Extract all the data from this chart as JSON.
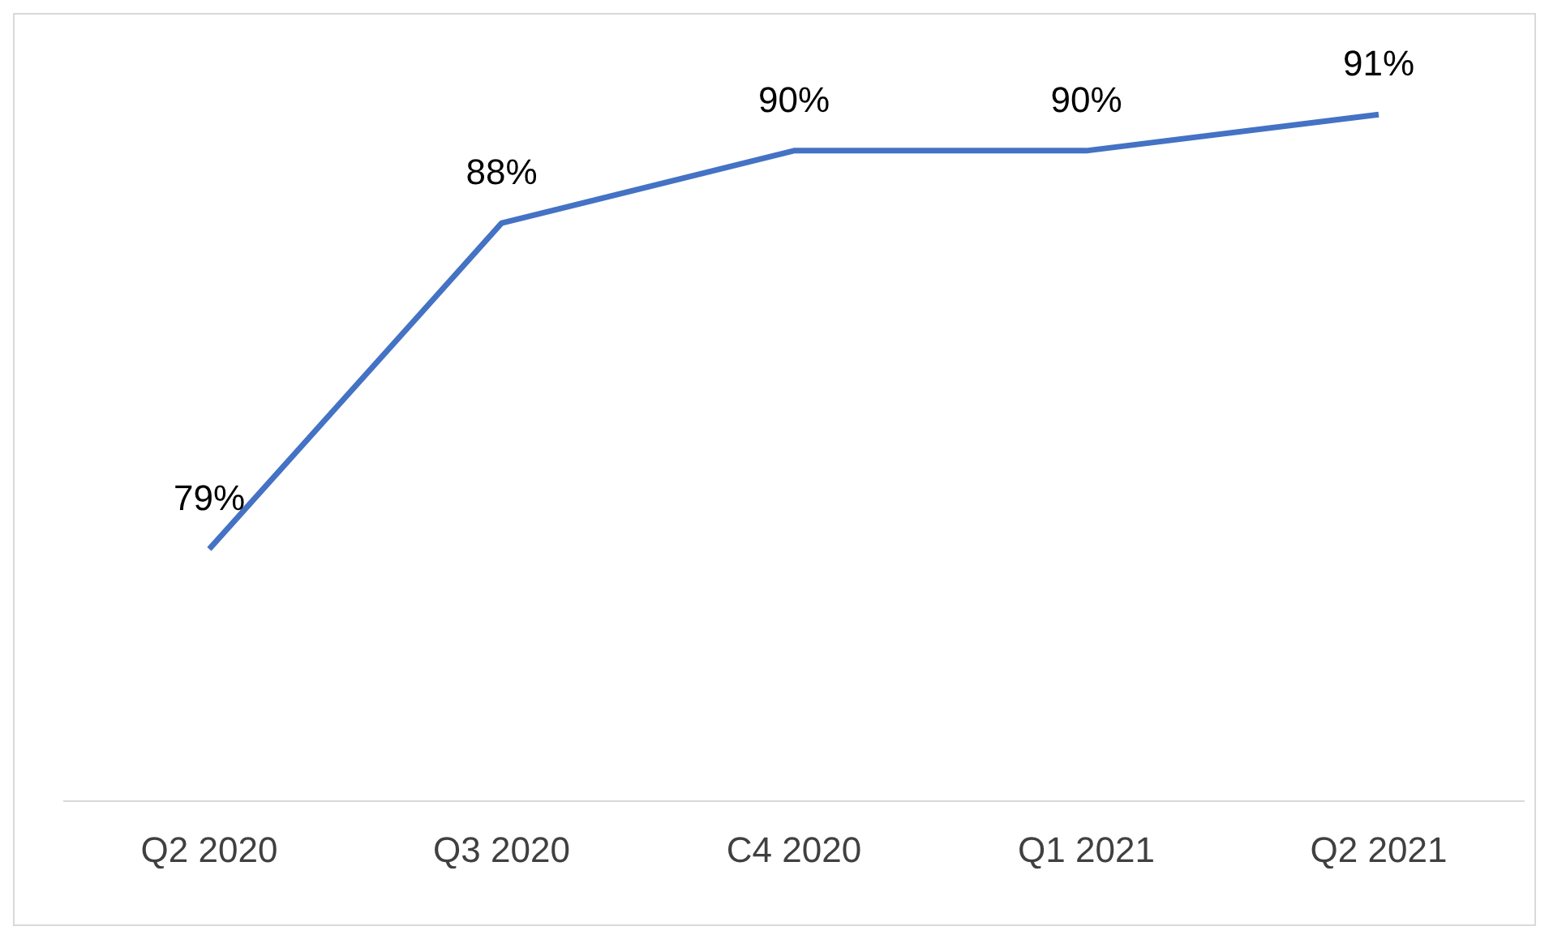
{
  "chart_data": {
    "type": "line",
    "categories": [
      "Q2 2020",
      "Q3 2020",
      "C4 2020",
      "Q1 2021",
      "Q2 2021"
    ],
    "series": [
      {
        "color": "#4472c4",
        "values": [
          79,
          88,
          90,
          90,
          91
        ],
        "value_labels": [
          "79%",
          "88%",
          "90%",
          "90%",
          "91%"
        ]
      }
    ],
    "tick_labels": "x",
    "marker": "none",
    "line_style": "solid"
  }
}
